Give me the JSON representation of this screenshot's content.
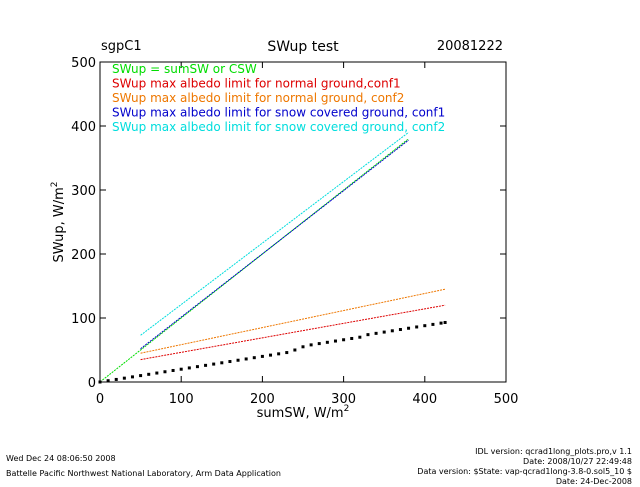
{
  "header": {
    "site": "sgpC1",
    "title": "SWup test",
    "date": "20081222"
  },
  "footer": {
    "left_line1": "Wed Dec 24 08:06:50 2008",
    "left_line2": "Battelle Pacific Northwest National Laboratory, Arm Data Application",
    "right_line1": "IDL version: qcrad1long_plots.pro,v 1.1",
    "right_line2": "Date: 2008/10/27 22:49:48",
    "right_line3": "Data version: $State: vap-qcrad1long-3.8-0.sol5_10 $",
    "right_line4": "Date: 24-Dec-2008"
  },
  "chart_data": {
    "type": "scatter",
    "title": "SWup test",
    "xlabel": "sumSW, W/m",
    "xlabel_sup": "2",
    "ylabel": "SWup, W/m",
    "ylabel_sup": "2",
    "xlim": [
      0,
      500
    ],
    "ylim": [
      0,
      500
    ],
    "xticks": [
      0,
      100,
      200,
      300,
      400,
      500
    ],
    "yticks": [
      0,
      100,
      200,
      300,
      400,
      500
    ],
    "legend_placement": "top-left",
    "series": [
      {
        "name": "SWup = sumSW or CSW",
        "color": "#00dd00",
        "style": "line",
        "x": [
          0,
          380
        ],
        "y": [
          0,
          380
        ]
      },
      {
        "name": "SWup max albedo limit for normal ground,conf1",
        "color": "#dd0000",
        "style": "line",
        "x": [
          50,
          425
        ],
        "y": [
          35,
          120
        ]
      },
      {
        "name": "SWup max albedo limit for normal ground, conf2",
        "color": "#ee7700",
        "style": "line",
        "x": [
          50,
          425
        ],
        "y": [
          45,
          145
        ]
      },
      {
        "name": "SWup max albedo limit for snow covered ground, conf1",
        "color": "#0000cc",
        "style": "line",
        "x": [
          50,
          380
        ],
        "y": [
          52,
          378
        ]
      },
      {
        "name": "SWup max albedo limit for snow covered ground, conf2",
        "color": "#00dddd",
        "style": "line",
        "x": [
          50,
          380
        ],
        "y": [
          73,
          390
        ]
      },
      {
        "name": "",
        "color": "#000000",
        "style": "points",
        "x": [
          0,
          10,
          20,
          30,
          40,
          50,
          60,
          70,
          80,
          90,
          100,
          110,
          120,
          130,
          140,
          150,
          160,
          170,
          180,
          190,
          200,
          210,
          220,
          230,
          240,
          250,
          260,
          270,
          280,
          290,
          300,
          310,
          320,
          330,
          340,
          350,
          360,
          370,
          380,
          390,
          400,
          410,
          420,
          425
        ],
        "y": [
          0,
          2,
          4,
          6,
          8,
          10,
          12,
          14,
          16,
          18,
          20,
          22,
          24,
          26,
          28,
          30,
          32,
          34,
          36,
          38,
          40,
          42,
          44,
          46,
          50,
          55,
          58,
          60,
          62,
          64,
          66,
          68,
          70,
          74,
          76,
          78,
          80,
          82,
          84,
          86,
          88,
          90,
          92,
          93
        ]
      }
    ]
  }
}
